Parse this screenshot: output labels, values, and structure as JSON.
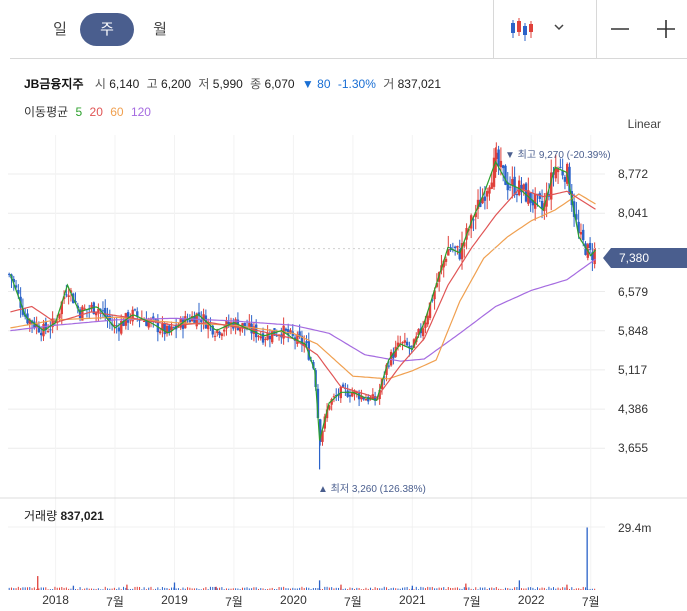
{
  "tabs": [
    {
      "label": "일",
      "active": false
    },
    {
      "label": "주",
      "active": true
    },
    {
      "label": "월",
      "active": false
    }
  ],
  "toolbar": {
    "chart_type_icon": "candlestick-icon",
    "dropdown_icon": "chevron-down-icon",
    "zoom_out_icon": "minus-icon",
    "zoom_in_icon": "plus-icon"
  },
  "stock": {
    "name": "JB금융지주",
    "open_label": "시",
    "open": "6,140",
    "high_label": "고",
    "high": "6,200",
    "low_label": "저",
    "low": "5,990",
    "close_label": "종",
    "close": "6,070",
    "change_arrow": "▼",
    "change": "80",
    "change_pct": "-1.30%",
    "volume_label": "거",
    "volume": "837,021"
  },
  "moving_avg": {
    "label": "이동평균",
    "periods": [
      {
        "value": "5",
        "color": "#2ca02c"
      },
      {
        "value": "20",
        "color": "#e05555"
      },
      {
        "value": "60",
        "color": "#f0a050"
      },
      {
        "value": "120",
        "color": "#a56be0"
      }
    ]
  },
  "scale_label": "Linear",
  "colors": {
    "up": "#e0403a",
    "down": "#2b63c9",
    "accent": "#4a5e8e",
    "ma5": "#2ca02c",
    "ma20": "#e05555",
    "ma60": "#f0a050",
    "ma120": "#a56be0"
  },
  "chart_data": {
    "type": "candlestick",
    "y_ticks": [
      "8,772",
      "8,041",
      "6,579",
      "5,848",
      "5,117",
      "4,386",
      "3,655"
    ],
    "y_tick_values": [
      8772,
      8041,
      6579,
      5848,
      5117,
      4386,
      3655
    ],
    "ylim": [
      3100,
      9500
    ],
    "last_price": "7,380",
    "last_price_value": 7380,
    "high_annotation": "▼ 최고 9,270 (-20.39%)",
    "low_annotation": "▲ 최저 3,260 (126.38%)",
    "x_ticks": [
      "2018",
      "7월",
      "2019",
      "7월",
      "2020",
      "7월",
      "2021",
      "7월",
      "2022",
      "7월"
    ],
    "x_range": [
      "2017-08",
      "2022-08"
    ],
    "x_tick_positions": [
      2018.0,
      2018.5,
      2019.0,
      2019.5,
      2020.0,
      2020.5,
      2021.0,
      2021.5,
      2022.0,
      2022.5
    ],
    "price_path": [
      [
        2017.62,
        6900
      ],
      [
        2017.75,
        6100
      ],
      [
        2017.9,
        5850
      ],
      [
        2018.0,
        6000
      ],
      [
        2018.1,
        6700
      ],
      [
        2018.2,
        6200
      ],
      [
        2018.35,
        6300
      ],
      [
        2018.5,
        5900
      ],
      [
        2018.65,
        6150
      ],
      [
        2018.8,
        6000
      ],
      [
        2018.95,
        5800
      ],
      [
        2019.1,
        6050
      ],
      [
        2019.2,
        6150
      ],
      [
        2019.35,
        5850
      ],
      [
        2019.5,
        6000
      ],
      [
        2019.6,
        5900
      ],
      [
        2019.75,
        5750
      ],
      [
        2019.9,
        5850
      ],
      [
        2020.0,
        5700
      ],
      [
        2020.1,
        5600
      ],
      [
        2020.18,
        5100
      ],
      [
        2020.22,
        3800
      ],
      [
        2020.3,
        4500
      ],
      [
        2020.4,
        4700
      ],
      [
        2020.5,
        4700
      ],
      [
        2020.6,
        4600
      ],
      [
        2020.7,
        4550
      ],
      [
        2020.8,
        5300
      ],
      [
        2020.9,
        5600
      ],
      [
        2021.0,
        5500
      ],
      [
        2021.1,
        6000
      ],
      [
        2021.2,
        6700
      ],
      [
        2021.3,
        7400
      ],
      [
        2021.4,
        7300
      ],
      [
        2021.5,
        7900
      ],
      [
        2021.6,
        8400
      ],
      [
        2021.7,
        9000
      ],
      [
        2021.8,
        8600
      ],
      [
        2021.9,
        8500
      ],
      [
        2022.0,
        8300
      ],
      [
        2022.1,
        8100
      ],
      [
        2022.2,
        8900
      ],
      [
        2022.3,
        8800
      ],
      [
        2022.4,
        7600
      ],
      [
        2022.5,
        7250
      ],
      [
        2022.55,
        7380
      ]
    ],
    "ma20_path": [
      [
        2017.62,
        6200
      ],
      [
        2017.8,
        6300
      ],
      [
        2018.0,
        6000
      ],
      [
        2018.3,
        6200
      ],
      [
        2018.6,
        6100
      ],
      [
        2019.0,
        5950
      ],
      [
        2019.3,
        6000
      ],
      [
        2019.7,
        5850
      ],
      [
        2020.0,
        5700
      ],
      [
        2020.2,
        5400
      ],
      [
        2020.4,
        4800
      ],
      [
        2020.7,
        4600
      ],
      [
        2020.9,
        5200
      ],
      [
        2021.1,
        5700
      ],
      [
        2021.3,
        6700
      ],
      [
        2021.5,
        7400
      ],
      [
        2021.7,
        8000
      ],
      [
        2021.9,
        8500
      ],
      [
        2022.1,
        8350
      ],
      [
        2022.3,
        8450
      ],
      [
        2022.55,
        8100
      ]
    ],
    "ma60_path": [
      [
        2017.62,
        5900
      ],
      [
        2018.0,
        6050
      ],
      [
        2018.5,
        6100
      ],
      [
        2019.0,
        6000
      ],
      [
        2019.5,
        5950
      ],
      [
        2020.0,
        5800
      ],
      [
        2020.2,
        5600
      ],
      [
        2020.5,
        5000
      ],
      [
        2020.8,
        4950
      ],
      [
        2021.0,
        5100
      ],
      [
        2021.2,
        5300
      ],
      [
        2021.4,
        6400
      ],
      [
        2021.6,
        7200
      ],
      [
        2021.8,
        7600
      ],
      [
        2022.0,
        7900
      ],
      [
        2022.2,
        8100
      ],
      [
        2022.4,
        8400
      ],
      [
        2022.55,
        8200
      ]
    ],
    "ma120_path": [
      [
        2017.62,
        5850
      ],
      [
        2018.0,
        5950
      ],
      [
        2018.5,
        6050
      ],
      [
        2019.0,
        6080
      ],
      [
        2019.5,
        6030
      ],
      [
        2020.0,
        5950
      ],
      [
        2020.3,
        5800
      ],
      [
        2020.6,
        5400
      ],
      [
        2020.9,
        5280
      ],
      [
        2021.1,
        5320
      ],
      [
        2021.4,
        5800
      ],
      [
        2021.7,
        6300
      ],
      [
        2022.0,
        6600
      ],
      [
        2022.3,
        6800
      ],
      [
        2022.55,
        7200
      ]
    ],
    "volume_title": "거래량",
    "volume_value": "837,021",
    "volume_tick": "29.4m",
    "volume_ylim": [
      0,
      35000000
    ],
    "volume_spikes": [
      [
        2017.85,
        6500000
      ],
      [
        2018.15,
        2000000
      ],
      [
        2018.6,
        2500000
      ],
      [
        2019.0,
        3500000
      ],
      [
        2019.35,
        1500000
      ],
      [
        2020.22,
        4500000
      ],
      [
        2020.4,
        2500000
      ],
      [
        2021.0,
        2000000
      ],
      [
        2021.45,
        3000000
      ],
      [
        2021.9,
        4500000
      ],
      [
        2022.3,
        2500000
      ],
      [
        2022.47,
        29400000
      ]
    ]
  }
}
